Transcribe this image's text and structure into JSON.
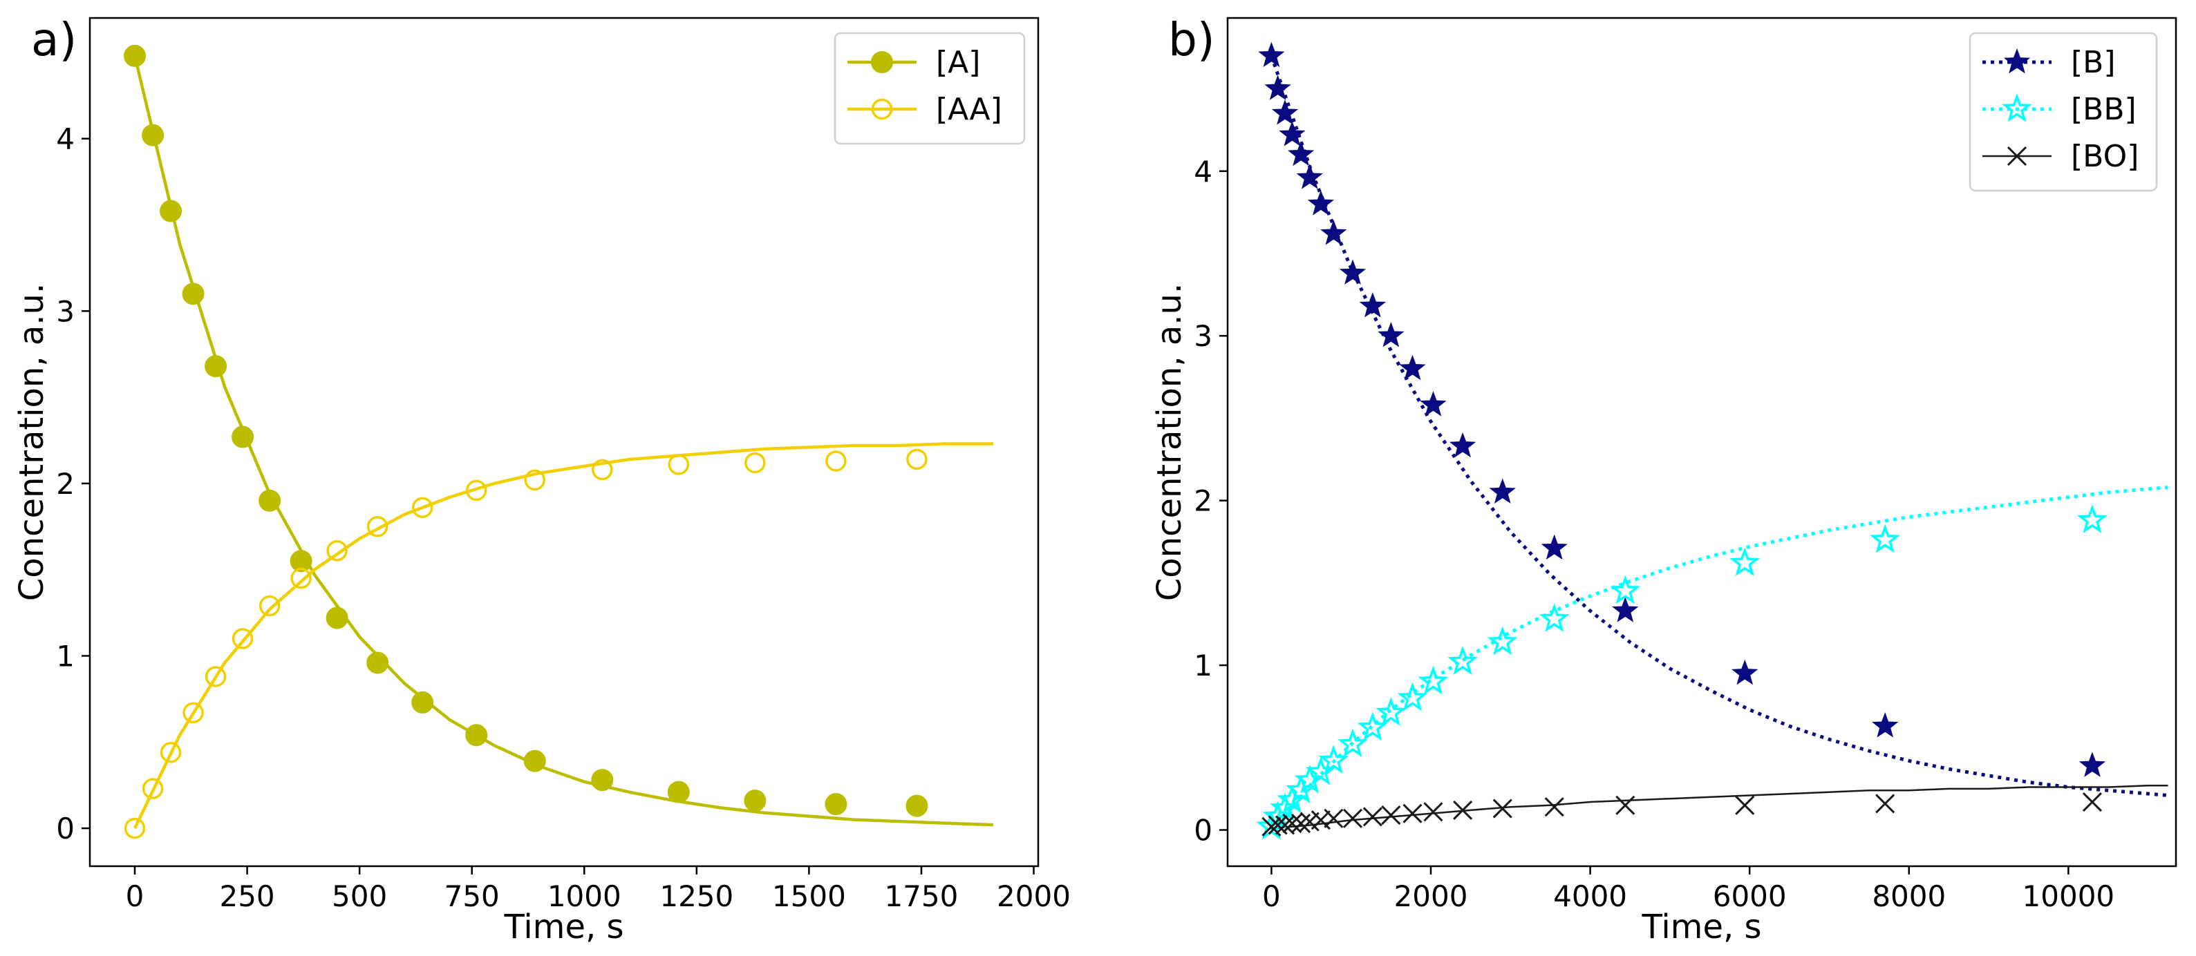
{
  "chart_data": [
    {
      "type": "scatter",
      "panel_label": "a)",
      "xlabel": "Time, s",
      "ylabel": "Concentration, a.u.",
      "xlim": [
        -100,
        2010
      ],
      "ylim": [
        -0.22,
        4.7
      ],
      "xticks": [
        0,
        250,
        500,
        750,
        1000,
        1250,
        1500,
        1750,
        2000
      ],
      "xtick_labels": [
        "0",
        "250",
        "500",
        "750",
        "1000",
        "1250",
        "1500",
        "1750",
        "2000"
      ],
      "yticks": [
        0,
        1,
        2,
        3,
        4
      ],
      "ytick_labels": [
        "0",
        "1",
        "2",
        "3",
        "4"
      ],
      "legend_position": "top-right",
      "series": [
        {
          "name": "[A]",
          "color": "#bdbd00",
          "marker": "filled-circle",
          "line_style": "solid",
          "x": [
            0,
            40,
            80,
            130,
            180,
            240,
            300,
            370,
            450,
            540,
            640,
            760,
            890,
            1040,
            1210,
            1380,
            1560,
            1740
          ],
          "y": [
            4.48,
            4.02,
            3.58,
            3.1,
            2.68,
            2.27,
            1.9,
            1.55,
            1.22,
            0.96,
            0.73,
            0.54,
            0.39,
            0.28,
            0.21,
            0.16,
            0.14,
            0.13
          ],
          "fit_x": [
            0,
            100,
            200,
            300,
            400,
            500,
            600,
            700,
            800,
            900,
            1000,
            1100,
            1200,
            1300,
            1400,
            1500,
            1600,
            1700,
            1800,
            1910
          ],
          "fit_y": [
            4.48,
            3.39,
            2.56,
            1.94,
            1.47,
            1.11,
            0.84,
            0.63,
            0.48,
            0.36,
            0.27,
            0.21,
            0.16,
            0.12,
            0.09,
            0.07,
            0.05,
            0.04,
            0.03,
            0.02
          ]
        },
        {
          "name": "[AA]",
          "color": "#f2cf00",
          "marker": "open-circle",
          "line_style": "solid",
          "x": [
            0,
            40,
            80,
            130,
            180,
            240,
            300,
            370,
            450,
            540,
            640,
            760,
            890,
            1040,
            1210,
            1380,
            1560,
            1740
          ],
          "y": [
            0,
            0.23,
            0.44,
            0.67,
            0.88,
            1.1,
            1.29,
            1.45,
            1.61,
            1.75,
            1.86,
            1.96,
            2.02,
            2.08,
            2.11,
            2.12,
            2.13,
            2.14
          ],
          "fit_x": [
            0,
            100,
            200,
            300,
            400,
            500,
            600,
            700,
            800,
            900,
            1000,
            1100,
            1200,
            1300,
            1400,
            1500,
            1600,
            1700,
            1800,
            1910
          ],
          "fit_y": [
            0,
            0.54,
            0.96,
            1.27,
            1.5,
            1.68,
            1.82,
            1.92,
            2.0,
            2.06,
            2.1,
            2.14,
            2.16,
            2.18,
            2.2,
            2.21,
            2.22,
            2.22,
            2.23,
            2.23
          ]
        }
      ]
    },
    {
      "type": "scatter",
      "panel_label": "b)",
      "xlabel": "Time, s",
      "ylabel": "Concentration, a.u.",
      "xlim": [
        -550,
        11350
      ],
      "ylim": [
        -0.22,
        4.93
      ],
      "xticks": [
        0,
        2000,
        4000,
        6000,
        8000,
        10000
      ],
      "xtick_labels": [
        "0",
        "2000",
        "4000",
        "6000",
        "8000",
        "10000"
      ],
      "yticks": [
        0,
        1,
        2,
        3,
        4
      ],
      "ytick_labels": [
        "0",
        "1",
        "2",
        "3",
        "4"
      ],
      "legend_position": "top-right",
      "series": [
        {
          "name": "[B]",
          "color": "#0a0a80",
          "marker": "filled-star",
          "line_style": "dotted",
          "x": [
            0,
            80,
            170,
            260,
            370,
            480,
            620,
            780,
            1020,
            1270,
            1500,
            1770,
            2030,
            2400,
            2900,
            3550,
            4440,
            5940,
            7700,
            10300
          ],
          "y": [
            4.7,
            4.5,
            4.35,
            4.22,
            4.1,
            3.96,
            3.8,
            3.62,
            3.38,
            3.18,
            3.0,
            2.8,
            2.58,
            2.33,
            2.05,
            1.71,
            1.33,
            0.95,
            0.63,
            0.39
          ],
          "fit_x": [
            0,
            500,
            1000,
            1500,
            2000,
            2500,
            3000,
            3500,
            4000,
            4500,
            5000,
            5500,
            6000,
            6500,
            7000,
            7500,
            8000,
            8500,
            9000,
            9500,
            10000,
            10500,
            11000,
            11250
          ],
          "fit_y": [
            4.7,
            4.0,
            3.41,
            2.91,
            2.48,
            2.12,
            1.81,
            1.55,
            1.33,
            1.14,
            0.98,
            0.85,
            0.73,
            0.63,
            0.55,
            0.48,
            0.42,
            0.37,
            0.33,
            0.29,
            0.26,
            0.24,
            0.22,
            0.21
          ]
        },
        {
          "name": "[BB]",
          "color": "#00ffff",
          "marker": "open-star",
          "line_style": "dotted",
          "x": [
            0,
            80,
            170,
            260,
            370,
            480,
            620,
            780,
            1020,
            1270,
            1500,
            1770,
            2030,
            2400,
            2900,
            3550,
            4440,
            5940,
            7700,
            10300
          ],
          "y": [
            0.02,
            0.08,
            0.13,
            0.18,
            0.24,
            0.3,
            0.35,
            0.42,
            0.52,
            0.62,
            0.71,
            0.8,
            0.9,
            1.02,
            1.14,
            1.28,
            1.45,
            1.62,
            1.76,
            1.88
          ],
          "fit_x": [
            0,
            500,
            1000,
            1500,
            2000,
            2500,
            3000,
            3500,
            4000,
            4500,
            5000,
            5500,
            6000,
            6500,
            7000,
            7500,
            8000,
            8500,
            9000,
            9500,
            10000,
            10500,
            11000,
            11250
          ],
          "fit_y": [
            0,
            0.28,
            0.52,
            0.73,
            0.91,
            1.06,
            1.2,
            1.32,
            1.42,
            1.51,
            1.59,
            1.66,
            1.72,
            1.77,
            1.82,
            1.86,
            1.9,
            1.93,
            1.96,
            1.99,
            2.02,
            2.05,
            2.07,
            2.08
          ]
        },
        {
          "name": "[BO]",
          "color": "#1a1a1a",
          "marker": "x",
          "line_style": "solid",
          "x": [
            0,
            80,
            170,
            260,
            370,
            480,
            620,
            780,
            1020,
            1270,
            1500,
            1770,
            2030,
            2400,
            2900,
            3550,
            4440,
            5940,
            7700,
            10300
          ],
          "y": [
            0.02,
            0.03,
            0.03,
            0.04,
            0.04,
            0.05,
            0.06,
            0.07,
            0.07,
            0.08,
            0.09,
            0.1,
            0.11,
            0.12,
            0.13,
            0.14,
            0.15,
            0.15,
            0.16,
            0.17
          ],
          "fit_x": [
            0,
            500,
            1000,
            1500,
            2000,
            2500,
            3000,
            3500,
            4000,
            4500,
            5000,
            5500,
            6000,
            6500,
            7000,
            7500,
            8000,
            8500,
            9000,
            9500,
            10000,
            10500,
            11000,
            11250
          ],
          "fit_y": [
            0.01,
            0.03,
            0.06,
            0.08,
            0.1,
            0.12,
            0.14,
            0.15,
            0.17,
            0.18,
            0.19,
            0.2,
            0.21,
            0.22,
            0.23,
            0.24,
            0.24,
            0.25,
            0.25,
            0.26,
            0.26,
            0.26,
            0.27,
            0.27
          ]
        }
      ]
    }
  ]
}
